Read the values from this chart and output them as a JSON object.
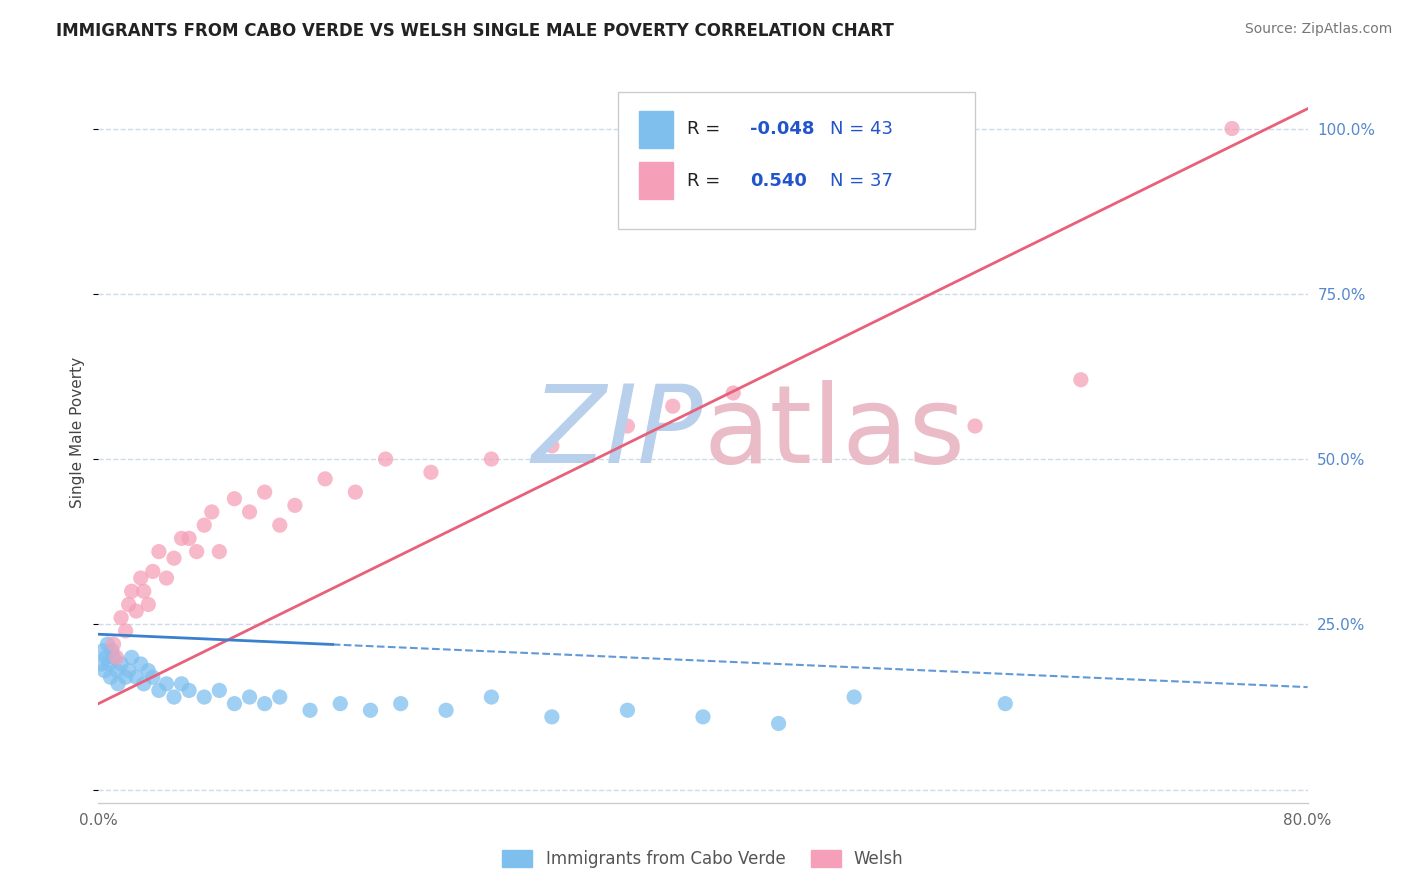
{
  "title": "IMMIGRANTS FROM CABO VERDE VS WELSH SINGLE MALE POVERTY CORRELATION CHART",
  "source_text": "Source: ZipAtlas.com",
  "ylabel": "Single Male Poverty",
  "xlim": [
    0.0,
    0.8
  ],
  "ylim": [
    -0.02,
    1.1
  ],
  "ytick_vals": [
    0.0,
    0.25,
    0.5,
    0.75,
    1.0
  ],
  "ytick_labels": [
    "",
    "25.0%",
    "50.0%",
    "75.0%",
    "100.0%"
  ],
  "xtick_vals": [
    0.0,
    0.2,
    0.4,
    0.6,
    0.8
  ],
  "xtick_labels": [
    "0.0%",
    "",
    "",
    "",
    "80.0%"
  ],
  "legend_R_blue": "-0.048",
  "legend_N_blue": "43",
  "legend_R_pink": "0.540",
  "legend_N_pink": "37",
  "legend_label_blue": "Immigrants from Cabo Verde",
  "legend_label_pink": "Welsh",
  "blue_scatter_x": [
    0.002,
    0.003,
    0.004,
    0.005,
    0.006,
    0.007,
    0.008,
    0.009,
    0.01,
    0.012,
    0.013,
    0.015,
    0.018,
    0.02,
    0.022,
    0.025,
    0.028,
    0.03,
    0.033,
    0.036,
    0.04,
    0.045,
    0.05,
    0.055,
    0.06,
    0.07,
    0.08,
    0.09,
    0.1,
    0.11,
    0.12,
    0.14,
    0.16,
    0.18,
    0.2,
    0.23,
    0.26,
    0.3,
    0.35,
    0.4,
    0.45,
    0.5,
    0.6
  ],
  "blue_scatter_y": [
    0.19,
    0.21,
    0.18,
    0.2,
    0.22,
    0.19,
    0.17,
    0.21,
    0.2,
    0.18,
    0.16,
    0.19,
    0.17,
    0.18,
    0.2,
    0.17,
    0.19,
    0.16,
    0.18,
    0.17,
    0.15,
    0.16,
    0.14,
    0.16,
    0.15,
    0.14,
    0.15,
    0.13,
    0.14,
    0.13,
    0.14,
    0.12,
    0.13,
    0.12,
    0.13,
    0.12,
    0.14,
    0.11,
    0.12,
    0.11,
    0.1,
    0.14,
    0.13
  ],
  "pink_scatter_x": [
    0.01,
    0.012,
    0.015,
    0.018,
    0.02,
    0.022,
    0.025,
    0.028,
    0.03,
    0.033,
    0.036,
    0.04,
    0.045,
    0.05,
    0.055,
    0.06,
    0.065,
    0.07,
    0.075,
    0.08,
    0.09,
    0.1,
    0.11,
    0.12,
    0.13,
    0.15,
    0.17,
    0.19,
    0.22,
    0.26,
    0.3,
    0.35,
    0.38,
    0.42,
    0.58,
    0.65,
    0.75
  ],
  "pink_scatter_y": [
    0.22,
    0.2,
    0.26,
    0.24,
    0.28,
    0.3,
    0.27,
    0.32,
    0.3,
    0.28,
    0.33,
    0.36,
    0.32,
    0.35,
    0.38,
    0.38,
    0.36,
    0.4,
    0.42,
    0.36,
    0.44,
    0.42,
    0.45,
    0.4,
    0.43,
    0.47,
    0.45,
    0.5,
    0.48,
    0.5,
    0.52,
    0.55,
    0.58,
    0.6,
    0.55,
    0.62,
    1.0
  ],
  "blue_color": "#7fbfee",
  "pink_color": "#f5a0b8",
  "blue_line_color": "#3a80cc",
  "pink_line_color": "#e8607a",
  "blue_trend_x": [
    0.0,
    0.15,
    0.8
  ],
  "blue_trend_y": [
    0.235,
    0.2,
    0.155
  ],
  "pink_trend_x": [
    0.0,
    0.8
  ],
  "pink_trend_y": [
    0.13,
    1.03
  ],
  "title_color": "#222222",
  "background_color": "#ffffff",
  "grid_color": "#c8d8e8",
  "watermark_zip_color": "#b8d0ec",
  "watermark_atlas_color": "#eabcc8"
}
